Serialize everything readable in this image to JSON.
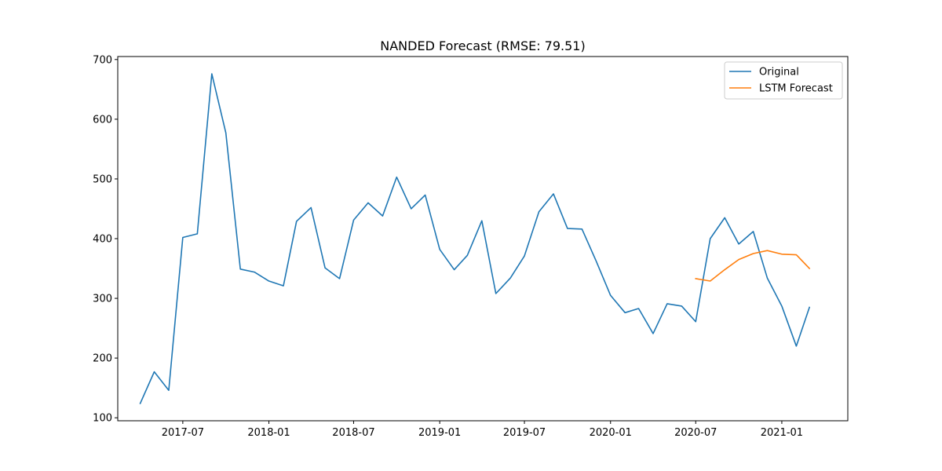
{
  "chart_data": {
    "type": "line",
    "title": "NANDED Forecast (RMSE: 79.51)",
    "xlabel": "",
    "ylabel": "",
    "x_range": [
      "2017-02-12",
      "2021-05-22"
    ],
    "ylim": [
      95,
      705
    ],
    "x_ticks": [
      "2017-07",
      "2018-01",
      "2018-07",
      "2019-01",
      "2019-07",
      "2020-01",
      "2020-07",
      "2021-01"
    ],
    "y_ticks": [
      100,
      200,
      300,
      400,
      500,
      600,
      700
    ],
    "grid": false,
    "legend_position": "top-right",
    "series": [
      {
        "name": "Original",
        "color": "#1f77b4",
        "points": [
          [
            "2017-04-01",
            124
          ],
          [
            "2017-05-01",
            177
          ],
          [
            "2017-06-01",
            146
          ],
          [
            "2017-07-01",
            402
          ],
          [
            "2017-08-01",
            408
          ],
          [
            "2017-09-01",
            676
          ],
          [
            "2017-10-01",
            577
          ],
          [
            "2017-11-01",
            349
          ],
          [
            "2017-12-01",
            344
          ],
          [
            "2018-01-01",
            329
          ],
          [
            "2018-02-01",
            321
          ],
          [
            "2018-03-01",
            429
          ],
          [
            "2018-04-01",
            452
          ],
          [
            "2018-05-01",
            351
          ],
          [
            "2018-06-01",
            333
          ],
          [
            "2018-07-01",
            431
          ],
          [
            "2018-08-01",
            460
          ],
          [
            "2018-09-01",
            438
          ],
          [
            "2018-10-01",
            503
          ],
          [
            "2018-11-01",
            450
          ],
          [
            "2018-12-01",
            473
          ],
          [
            "2019-01-01",
            382
          ],
          [
            "2019-02-01",
            348
          ],
          [
            "2019-03-01",
            372
          ],
          [
            "2019-04-01",
            430
          ],
          [
            "2019-05-01",
            308
          ],
          [
            "2019-06-01",
            334
          ],
          [
            "2019-07-01",
            371
          ],
          [
            "2019-08-01",
            445
          ],
          [
            "2019-09-01",
            475
          ],
          [
            "2019-10-01",
            417
          ],
          [
            "2019-11-01",
            416
          ],
          [
            "2019-12-01",
            363
          ],
          [
            "2020-01-01",
            305
          ],
          [
            "2020-02-01",
            276
          ],
          [
            "2020-03-01",
            283
          ],
          [
            "2020-04-01",
            241
          ],
          [
            "2020-05-01",
            291
          ],
          [
            "2020-06-01",
            287
          ],
          [
            "2020-07-01",
            261
          ],
          [
            "2020-08-01",
            400
          ],
          [
            "2020-09-01",
            435
          ],
          [
            "2020-10-01",
            391
          ],
          [
            "2020-11-01",
            412
          ],
          [
            "2020-12-01",
            334
          ],
          [
            "2021-01-01",
            287
          ],
          [
            "2021-02-01",
            220
          ],
          [
            "2021-03-01",
            285
          ]
        ]
      },
      {
        "name": "LSTM Forecast",
        "color": "#ff7f0e",
        "points": [
          [
            "2020-07-01",
            333
          ],
          [
            "2020-08-01",
            329
          ],
          [
            "2020-09-01",
            348
          ],
          [
            "2020-10-01",
            365
          ],
          [
            "2020-11-01",
            375
          ],
          [
            "2020-12-01",
            380
          ],
          [
            "2021-01-01",
            374
          ],
          [
            "2021-02-01",
            373
          ],
          [
            "2021-03-01",
            350
          ]
        ]
      }
    ]
  }
}
